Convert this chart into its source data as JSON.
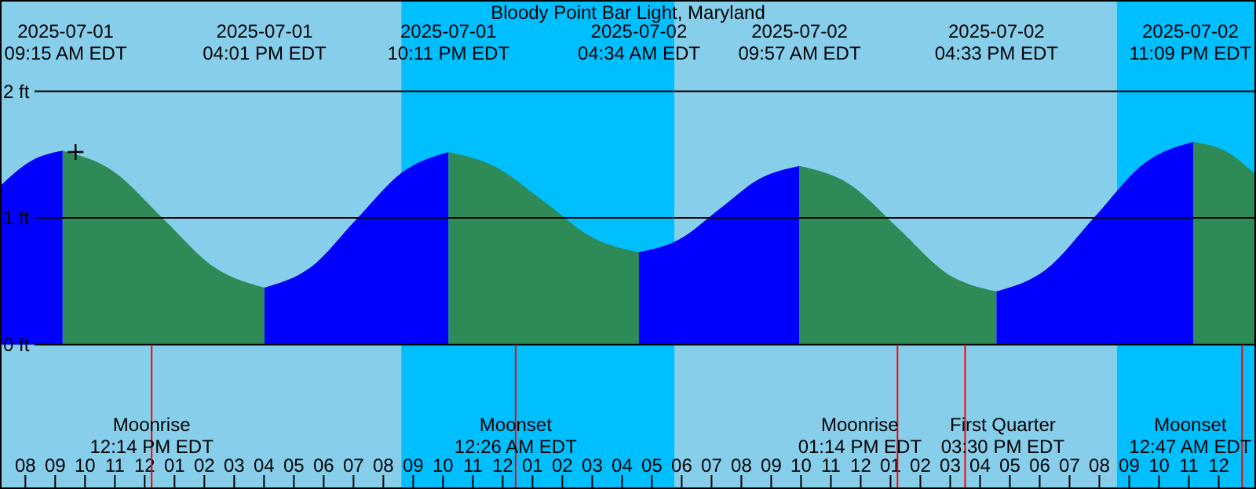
{
  "chart_data": {
    "type": "area",
    "title": "Bloody Point Bar Light, Maryland",
    "xlim": [
      "2025-07-01T07:09",
      "2025-07-03T01:15"
    ],
    "xticks": [
      {
        "value": "2025-07-01T08:00",
        "label": "08"
      },
      {
        "value": "2025-07-01T09:00",
        "label": "09"
      },
      {
        "value": "2025-07-01T10:00",
        "label": "10"
      },
      {
        "value": "2025-07-01T11:00",
        "label": "11"
      },
      {
        "value": "2025-07-01T12:00",
        "label": "12"
      },
      {
        "value": "2025-07-01T13:00",
        "label": "01"
      },
      {
        "value": "2025-07-01T14:00",
        "label": "02"
      },
      {
        "value": "2025-07-01T15:00",
        "label": "03"
      },
      {
        "value": "2025-07-01T16:00",
        "label": "04"
      },
      {
        "value": "2025-07-01T17:00",
        "label": "05"
      },
      {
        "value": "2025-07-01T18:00",
        "label": "06"
      },
      {
        "value": "2025-07-01T19:00",
        "label": "07"
      },
      {
        "value": "2025-07-01T20:00",
        "label": "08"
      },
      {
        "value": "2025-07-01T21:00",
        "label": "09"
      },
      {
        "value": "2025-07-01T22:00",
        "label": "10"
      },
      {
        "value": "2025-07-01T23:00",
        "label": "11"
      },
      {
        "value": "2025-07-02T00:00",
        "label": "12"
      },
      {
        "value": "2025-07-02T01:00",
        "label": "01"
      },
      {
        "value": "2025-07-02T02:00",
        "label": "02"
      },
      {
        "value": "2025-07-02T03:00",
        "label": "03"
      },
      {
        "value": "2025-07-02T04:00",
        "label": "04"
      },
      {
        "value": "2025-07-02T05:00",
        "label": "05"
      },
      {
        "value": "2025-07-02T06:00",
        "label": "06"
      },
      {
        "value": "2025-07-02T07:00",
        "label": "07"
      },
      {
        "value": "2025-07-02T08:00",
        "label": "08"
      },
      {
        "value": "2025-07-02T09:00",
        "label": "09"
      },
      {
        "value": "2025-07-02T10:00",
        "label": "10"
      },
      {
        "value": "2025-07-02T11:00",
        "label": "11"
      },
      {
        "value": "2025-07-02T12:00",
        "label": "12"
      },
      {
        "value": "2025-07-02T13:00",
        "label": "01"
      },
      {
        "value": "2025-07-02T14:00",
        "label": "02"
      },
      {
        "value": "2025-07-02T15:00",
        "label": "03"
      },
      {
        "value": "2025-07-02T16:00",
        "label": "04"
      },
      {
        "value": "2025-07-02T17:00",
        "label": "05"
      },
      {
        "value": "2025-07-02T18:00",
        "label": "06"
      },
      {
        "value": "2025-07-02T19:00",
        "label": "07"
      },
      {
        "value": "2025-07-02T20:00",
        "label": "08"
      },
      {
        "value": "2025-07-02T21:00",
        "label": "09"
      },
      {
        "value": "2025-07-02T22:00",
        "label": "10"
      },
      {
        "value": "2025-07-02T23:00",
        "label": "11"
      },
      {
        "value": "2025-07-03T00:00",
        "label": "12"
      }
    ],
    "x2lim": [
      "2025-07-01T07:09",
      "2025-07-03T01:15"
    ],
    "x2ticks": [
      {
        "value": "2025-07-01T09:15",
        "label": "2025-07-01\n09:15 AM EDT"
      },
      {
        "value": "2025-07-01T16:01",
        "label": "2025-07-01\n04:01 PM EDT"
      },
      {
        "value": "2025-07-01T22:11",
        "label": "2025-07-01\n10:11 PM EDT"
      },
      {
        "value": "2025-07-02T04:34",
        "label": "2025-07-02\n04:34 AM EDT"
      },
      {
        "value": "2025-07-02T09:57",
        "label": "2025-07-02\n09:57 AM EDT"
      },
      {
        "value": "2025-07-02T16:33",
        "label": "2025-07-02\n04:33 PM EDT"
      },
      {
        "value": "2025-07-02T23:09",
        "label": "2025-07-02\n11:09 PM EDT"
      }
    ],
    "ref_lines": [
      {
        "axis": "x",
        "value": "2025-07-01T12:14",
        "label": "Moonrise\n12:14 PM EDT",
        "color": "#ff0000"
      },
      {
        "axis": "x",
        "value": "2025-07-02T00:26",
        "label": "Moonset\n12:26 AM EDT",
        "color": "#ff0000"
      },
      {
        "axis": "x",
        "value": "2025-07-02T13:14",
        "label": "Moonrise\n01:14 PM EDT",
        "color": "#ff0000"
      },
      {
        "axis": "x",
        "value": "2025-07-02T15:30",
        "label": "First Quarter\n03:30 PM EDT",
        "color": "#ff0000"
      },
      {
        "axis": "x",
        "value": "2025-07-03T00:47",
        "label": "Moonset\n12:47 AM EDT",
        "color": "#ff0000"
      }
    ],
    "ylim": [
      -1.14,
      2.72
    ],
    "yticks": [
      {
        "value": 0,
        "label": "0 ft"
      },
      {
        "value": 1,
        "label": "1 ft"
      },
      {
        "value": 2,
        "label": "2 ft"
      }
    ],
    "grid": "y",
    "bands": [
      {
        "axis": "x",
        "from": "2025-07-01T07:09",
        "to": "2025-07-01T20:36",
        "color": "#87ceeb"
      },
      {
        "axis": "x",
        "from": "2025-07-01T20:36",
        "to": "2025-07-02T05:46",
        "color": "#00bfff"
      },
      {
        "axis": "x",
        "from": "2025-07-02T05:46",
        "to": "2025-07-02T20:35",
        "color": "#87ceeb"
      },
      {
        "axis": "x",
        "from": "2025-07-02T20:35",
        "to": "2025-07-03T01:15",
        "color": "#00bfff"
      }
    ],
    "series": [
      {
        "color": "#0000ff",
        "x": [
          "2025-07-01T07:09",
          "2025-07-01T08:12",
          "2025-07-01T09:15"
        ],
        "values": [
          1.25,
          1.45,
          1.53
        ]
      },
      {
        "color": "#2e8b57",
        "x": [
          "2025-07-01T09:15",
          "2025-07-01T10:56",
          "2025-07-01T12:38",
          "2025-07-01T14:20",
          "2025-07-01T16:01"
        ],
        "values": [
          1.53,
          1.37,
          0.99,
          0.61,
          0.45
        ]
      },
      {
        "color": "#0000ff",
        "x": [
          "2025-07-01T16:01",
          "2025-07-01T17:34",
          "2025-07-01T19:06",
          "2025-07-01T20:38",
          "2025-07-01T22:11"
        ],
        "values": [
          0.45,
          0.61,
          0.99,
          1.36,
          1.52
        ]
      },
      {
        "color": "#2e8b57",
        "x": [
          "2025-07-01T22:11",
          "2025-07-01T23:47",
          "2025-07-02T01:23",
          "2025-07-02T02:58",
          "2025-07-02T04:34"
        ],
        "values": [
          1.52,
          1.4,
          1.13,
          0.85,
          0.73
        ]
      },
      {
        "color": "#0000ff",
        "x": [
          "2025-07-02T04:34",
          "2025-07-02T05:55",
          "2025-07-02T07:16",
          "2025-07-02T08:37",
          "2025-07-02T09:57"
        ],
        "values": [
          0.73,
          0.83,
          1.07,
          1.31,
          1.41
        ]
      },
      {
        "color": "#2e8b57",
        "x": [
          "2025-07-02T09:57",
          "2025-07-02T11:36",
          "2025-07-02T13:15",
          "2025-07-02T14:54",
          "2025-07-02T16:33"
        ],
        "values": [
          1.41,
          1.27,
          0.92,
          0.56,
          0.42
        ]
      },
      {
        "color": "#0000ff",
        "x": [
          "2025-07-02T16:33",
          "2025-07-02T18:12",
          "2025-07-02T19:51",
          "2025-07-02T21:30",
          "2025-07-02T23:09"
        ],
        "values": [
          0.42,
          0.59,
          1.01,
          1.43,
          1.6
        ]
      },
      {
        "color": "#2e8b57",
        "x": [
          "2025-07-02T23:09",
          "2025-07-03T00:12",
          "2025-07-03T01:15"
        ],
        "values": [
          1.6,
          1.53,
          1.34
        ]
      },
      {
        "type": "scatter",
        "color": "#000000",
        "marker": "cross",
        "x": [
          "2025-07-01T09:41"
        ],
        "values": [
          1.52
        ]
      }
    ]
  }
}
